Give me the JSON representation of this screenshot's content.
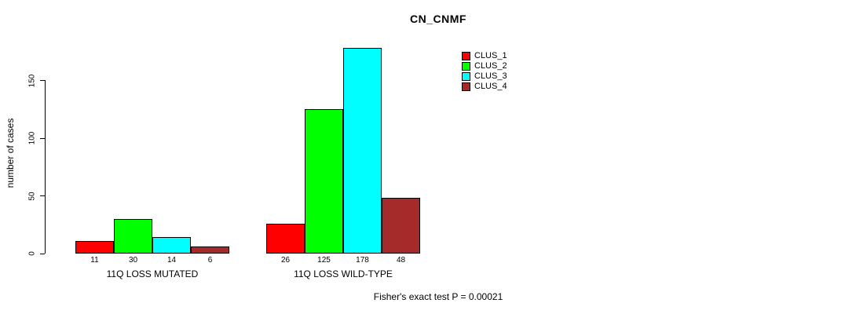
{
  "chart_data": {
    "type": "bar",
    "title": "CN_CNMF",
    "xlabel": "",
    "ylabel": "number of cases",
    "yticks": [
      0,
      50,
      100,
      150
    ],
    "ylim": [
      0,
      185
    ],
    "grid": false,
    "legend_position": "top-right",
    "bar_value_labels_shown": true,
    "categories": [
      "11Q LOSS MUTATED",
      "11Q LOSS WILD-TYPE"
    ],
    "series": [
      {
        "name": "CLUS_1",
        "color": "#FF0000",
        "values": [
          11,
          26
        ]
      },
      {
        "name": "CLUS_2",
        "color": "#00FF00",
        "values": [
          30,
          125
        ]
      },
      {
        "name": "CLUS_3",
        "color": "#00FFFF",
        "values": [
          14,
          178
        ]
      },
      {
        "name": "CLUS_4",
        "color": "#A52A2A",
        "values": [
          6,
          48
        ]
      }
    ],
    "annotation": "Fisher's exact test P = 0.00021"
  }
}
